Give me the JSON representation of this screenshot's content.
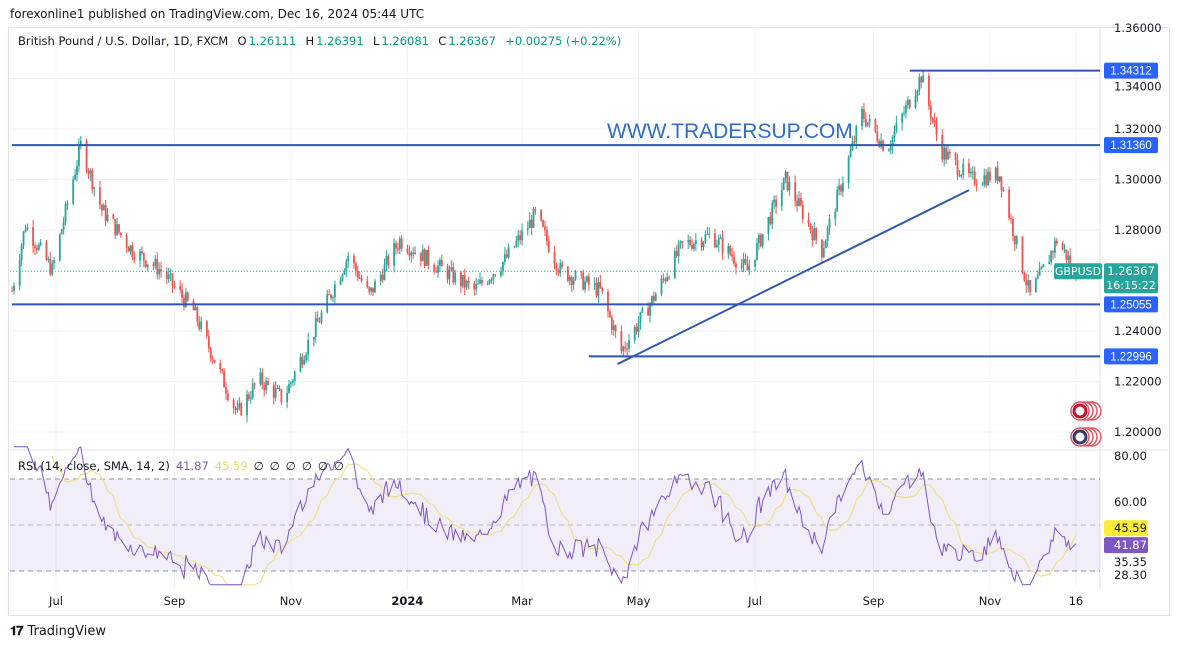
{
  "header": {
    "published": "forexonline1 published on TradingView.com, Dec 16, 2024 05:44 UTC",
    "symbol": "British Pound / U.S. Dollar, 1D, FXCM",
    "open_label": "O",
    "open": "1.26111",
    "high_label": "H",
    "high": "1.26391",
    "low_label": "L",
    "low": "1.26081",
    "close_label": "C",
    "close": "1.26367",
    "change": "+0.00275 (+0.22%)"
  },
  "watermark": "WWW.TRADERSUP.COM",
  "rsi_legend": {
    "label": "RSI (14, close, SMA, 14, 2)",
    "rsi": "41.87",
    "sma": "45.59",
    "nulls": [
      "∅",
      "∅",
      "∅",
      "∅",
      "∅",
      "∅"
    ]
  },
  "footer": {
    "brand": "TradingView",
    "logo": "17"
  },
  "colors": {
    "up": "#26a69a",
    "down": "#ef5350",
    "drawing": "#2962ff",
    "line": "#2f56b0",
    "rsi": "#7e57c2",
    "rsi_sma": "#f0e08a",
    "watermark": "#2e6cc7"
  },
  "chart_data": [
    {
      "type": "candlestick",
      "symbol": "GBPUSD",
      "price_label": "GBPUSD",
      "last_price": "1.26367",
      "countdown": "16:15:22",
      "ylim": [
        1.19,
        1.365
      ],
      "y_ticks": [
        "1.36000",
        "1.34000",
        "1.32000",
        "1.30000",
        "1.28000",
        "1.24000",
        "1.22000",
        "1.20000"
      ],
      "y_tick_values": [
        1.36,
        1.34,
        1.32,
        1.3,
        1.28,
        1.24,
        1.22,
        1.2
      ],
      "x_ticks": [
        {
          "label": "Jul",
          "date": "2023-07-01"
        },
        {
          "label": "Sep",
          "date": "2023-09-01"
        },
        {
          "label": "Nov",
          "date": "2023-11-01"
        },
        {
          "label": "2024",
          "date": "2024-01-01"
        },
        {
          "label": "Mar",
          "date": "2024-03-01"
        },
        {
          "label": "May",
          "date": "2024-05-01"
        },
        {
          "label": "Jul",
          "date": "2024-07-01"
        },
        {
          "label": "Sep",
          "date": "2024-09-01"
        },
        {
          "label": "Nov",
          "date": "2024-11-01"
        },
        {
          "label": "16",
          "date": "2024-12-16"
        }
      ],
      "close_path": [
        [
          "2023-06-08",
          1.256
        ],
        [
          "2023-06-15",
          1.282
        ],
        [
          "2023-06-29",
          1.264
        ],
        [
          "2023-07-14",
          1.3136
        ],
        [
          "2023-07-25",
          1.288
        ],
        [
          "2023-08-10",
          1.272
        ],
        [
          "2023-08-25",
          1.264
        ],
        [
          "2023-09-11",
          1.248
        ],
        [
          "2023-09-24",
          1.225
        ],
        [
          "2023-10-04",
          1.207
        ],
        [
          "2023-10-15",
          1.221
        ],
        [
          "2023-10-28",
          1.213
        ],
        [
          "2023-11-08",
          1.232
        ],
        [
          "2023-11-18",
          1.248
        ],
        [
          "2023-12-01",
          1.27
        ],
        [
          "2023-12-12",
          1.254
        ],
        [
          "2023-12-28",
          1.276
        ],
        [
          "2024-01-16",
          1.266
        ],
        [
          "2024-02-05",
          1.256
        ],
        [
          "2024-02-21",
          1.268
        ],
        [
          "2024-03-08",
          1.286
        ],
        [
          "2024-03-21",
          1.264
        ],
        [
          "2024-04-11",
          1.256
        ],
        [
          "2024-04-22",
          1.232
        ],
        [
          "2024-05-08",
          1.252
        ],
        [
          "2024-05-24",
          1.274
        ],
        [
          "2024-06-08",
          1.278
        ],
        [
          "2024-06-27",
          1.264
        ],
        [
          "2024-07-17",
          1.3
        ],
        [
          "2024-08-05",
          1.272
        ],
        [
          "2024-08-26",
          1.326
        ],
        [
          "2024-09-08",
          1.312
        ],
        [
          "2024-09-26",
          1.341
        ],
        [
          "2024-10-06",
          1.312
        ],
        [
          "2024-10-22",
          1.3
        ],
        [
          "2024-11-06",
          1.302
        ],
        [
          "2024-11-17",
          1.268
        ],
        [
          "2024-11-22",
          1.254
        ],
        [
          "2024-11-30",
          1.266
        ],
        [
          "2024-12-06",
          1.276
        ],
        [
          "2024-12-16",
          1.26367
        ]
      ],
      "levels": [
        {
          "label": "1.34312",
          "value": 1.34312,
          "from": "2024-09-20"
        },
        {
          "label": "1.31360",
          "value": 1.3136,
          "from": "2023-06-08"
        },
        {
          "label": "1.25055",
          "value": 1.25055,
          "from": "2023-06-08"
        },
        {
          "label": "1.22996",
          "value": 1.22996,
          "from": "2024-04-05"
        }
      ],
      "trendline": [
        [
          "2024-04-20",
          1.2269
        ],
        [
          "2024-10-21",
          1.2958
        ]
      ]
    },
    {
      "type": "line",
      "title": "RSI (14, close, SMA, 14, 2)",
      "ylim": [
        22,
        85
      ],
      "y_ticks": [
        "80.00",
        "60.00",
        "35.35",
        "28.30"
      ],
      "y_tick_values": [
        80,
        60,
        35.35,
        28.3
      ],
      "bands": [
        70,
        50,
        30
      ],
      "last_rsi": "41.87",
      "last_sma": "45.59",
      "series": [
        {
          "name": "RSI",
          "color": "#7e57c2"
        },
        {
          "name": "SMA",
          "color": "#f0e08a"
        }
      ]
    }
  ]
}
